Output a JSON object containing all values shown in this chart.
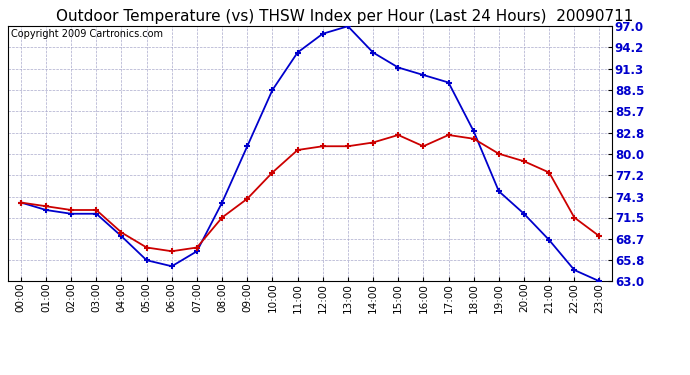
{
  "title": "Outdoor Temperature (vs) THSW Index per Hour (Last 24 Hours)  20090711",
  "copyright": "Copyright 2009 Cartronics.com",
  "hours": [
    "00:00",
    "01:00",
    "02:00",
    "03:00",
    "04:00",
    "05:00",
    "06:00",
    "07:00",
    "08:00",
    "09:00",
    "10:00",
    "11:00",
    "12:00",
    "13:00",
    "14:00",
    "15:00",
    "16:00",
    "17:00",
    "18:00",
    "19:00",
    "20:00",
    "21:00",
    "22:00",
    "23:00"
  ],
  "temp": [
    73.5,
    73.0,
    72.5,
    72.5,
    69.5,
    67.5,
    67.0,
    67.5,
    71.5,
    74.0,
    77.5,
    80.5,
    81.0,
    81.0,
    81.5,
    82.5,
    81.0,
    82.5,
    82.0,
    80.0,
    79.0,
    77.5,
    71.5,
    69.0
  ],
  "thsw": [
    73.5,
    72.5,
    72.0,
    72.0,
    69.0,
    65.8,
    65.0,
    67.0,
    73.5,
    81.0,
    88.5,
    93.5,
    96.0,
    97.0,
    93.5,
    91.5,
    90.5,
    89.5,
    83.0,
    75.0,
    72.0,
    68.5,
    64.5,
    63.0
  ],
  "ylim_min": 63.0,
  "ylim_max": 97.0,
  "yticks": [
    63.0,
    65.8,
    68.7,
    71.5,
    74.3,
    77.2,
    80.0,
    82.8,
    85.7,
    88.5,
    91.3,
    94.2,
    97.0
  ],
  "temp_color": "#cc0000",
  "thsw_color": "#0000cc",
  "bg_color": "#ffffff",
  "grid_color": "#aaaacc",
  "title_fontsize": 11,
  "copyright_fontsize": 7,
  "tick_fontsize": 7.5,
  "ytick_fontsize": 8.5
}
